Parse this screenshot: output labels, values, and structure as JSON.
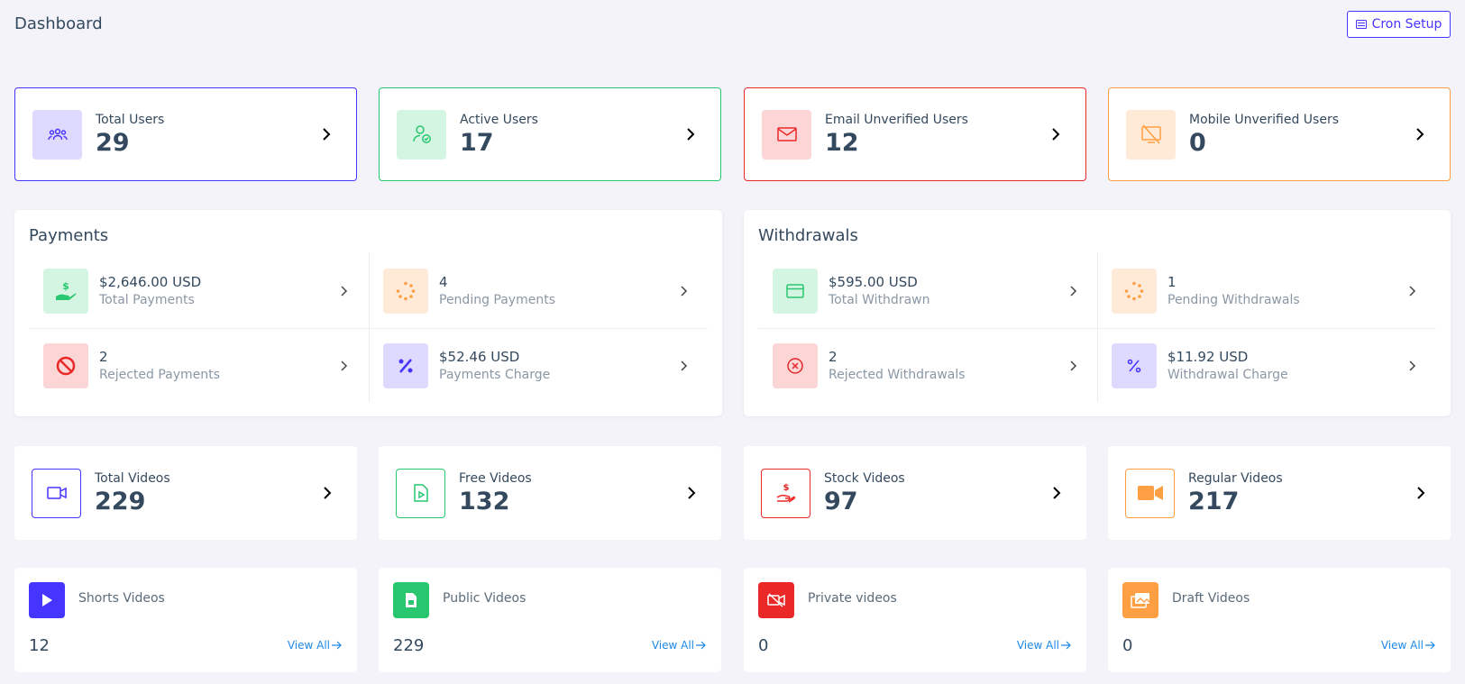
{
  "header": {
    "title": "Dashboard",
    "cron_label": "Cron Setup"
  },
  "user_widgets": [
    {
      "label": "Total Users",
      "value": "29",
      "icon": "users-icon",
      "color": "#4634ff",
      "bg": "#ded9ff"
    },
    {
      "label": "Active Users",
      "value": "17",
      "icon": "user-check-icon",
      "color": "#28c76f",
      "bg": "#d5f5e3"
    },
    {
      "label": "Email Unverified Users",
      "value": "12",
      "icon": "envelope-icon",
      "color": "#ea2828",
      "bg": "#fcd6d6"
    },
    {
      "label": "Mobile Unverified Users",
      "value": "0",
      "icon": "mobile-slash-icon",
      "color": "#ff9f43",
      "bg": "#ffead8"
    }
  ],
  "payments": {
    "title": "Payments",
    "items": [
      {
        "value": "$2,646.00 USD",
        "label": "Total Payments",
        "icon": "hand-dollar-icon"
      },
      {
        "value": "4",
        "label": "Pending Payments",
        "icon": "spinner-icon"
      },
      {
        "value": "2",
        "label": "Rejected Payments",
        "icon": "ban-icon"
      },
      {
        "value": "$52.46 USD",
        "label": "Payments Charge",
        "icon": "percent-icon"
      }
    ]
  },
  "withdrawals": {
    "title": "Withdrawals",
    "items": [
      {
        "value": "$595.00 USD",
        "label": "Total Withdrawn",
        "icon": "credit-card-icon"
      },
      {
        "value": "1",
        "label": "Pending Withdrawals",
        "icon": "spinner-icon"
      },
      {
        "value": "2",
        "label": "Rejected Withdrawals",
        "icon": "times-circle-icon"
      },
      {
        "value": "$11.92 USD",
        "label": "Withdrawal Charge",
        "icon": "percent-icon"
      }
    ]
  },
  "video_widgets": [
    {
      "label": "Total Videos",
      "value": "229",
      "icon": "video-icon",
      "color": "#4634ff"
    },
    {
      "label": "Free Videos",
      "value": "132",
      "icon": "file-video-icon",
      "color": "#28c76f"
    },
    {
      "label": "Stock Videos",
      "value": "97",
      "icon": "hand-dollar-icon",
      "color": "#ea2828"
    },
    {
      "label": "Regular Videos",
      "value": "217",
      "icon": "video-camera-icon",
      "color": "#ff9f43"
    }
  ],
  "status_cards": [
    {
      "label": "Shorts Videos",
      "value": "12",
      "link": "View All",
      "icon": "play-icon",
      "color": "#4634ff"
    },
    {
      "label": "Public Videos",
      "value": "229",
      "link": "View All",
      "icon": "file-icon",
      "color": "#28c76f"
    },
    {
      "label": "Private videos",
      "value": "0",
      "link": "View All",
      "icon": "video-slash-icon",
      "color": "#ea2828"
    },
    {
      "label": "Draft Videos",
      "value": "0",
      "link": "View All",
      "icon": "images-icon",
      "color": "#ff9f43"
    }
  ]
}
